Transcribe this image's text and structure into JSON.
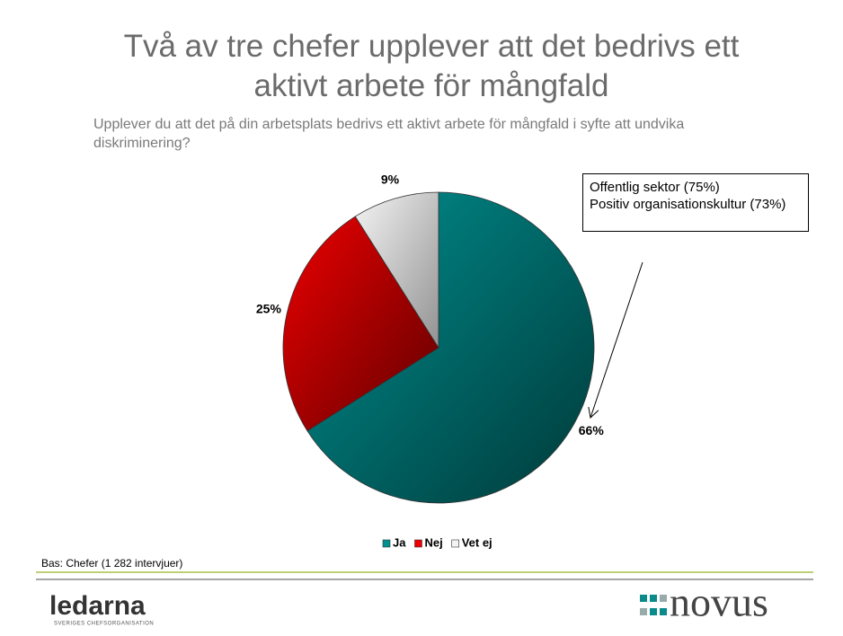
{
  "chart_data": {
    "type": "pie",
    "title": "Två av tre chefer upplever att det bedrivs ett aktivt arbete för mångfald",
    "subtitle": "Upplever du att det på din arbetsplats bedrivs ett aktivt arbete för mångfald  i syfte att undvika diskriminering?",
    "categories": [
      "Ja",
      "Nej",
      "Vet ej"
    ],
    "values": [
      66,
      25,
      9
    ],
    "value_labels": [
      "66%",
      "25%",
      "9%"
    ],
    "colors": [
      "#009090",
      "#ee0000",
      "#f4f4f4"
    ],
    "legend": "bottom",
    "annotation": [
      "Offentlig sektor (75%)",
      "Positiv organisationskultur (73%)"
    ],
    "footnote": "Bas: Chefer (1 282 intervjuer)"
  },
  "logos": {
    "left": {
      "name": "ledarna",
      "tagline": "SVERIGES CHEFSORGANISATION"
    },
    "right": {
      "name": "novus"
    }
  }
}
